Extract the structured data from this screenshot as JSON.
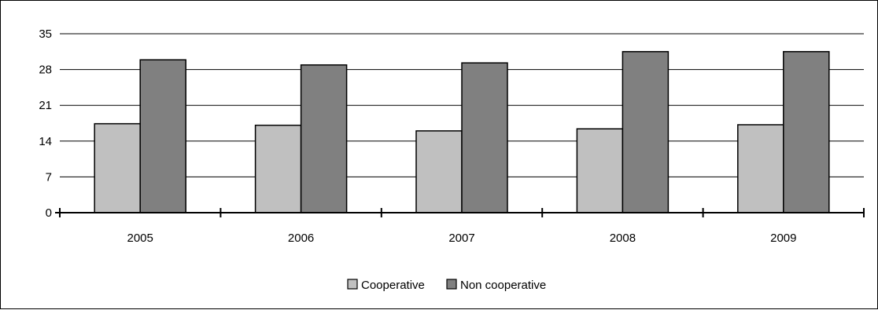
{
  "chart_data": {
    "type": "bar",
    "categories": [
      "2005",
      "2006",
      "2007",
      "2008",
      "2009"
    ],
    "series": [
      {
        "name": "Cooperative",
        "values": [
          17.4,
          17.1,
          16.0,
          16.4,
          17.2
        ],
        "color": "#c0c0c0"
      },
      {
        "name": "Non cooperative",
        "values": [
          29.9,
          28.9,
          29.3,
          31.5,
          31.5
        ],
        "color": "#808080"
      }
    ],
    "ylim": [
      0,
      35
    ],
    "yticks": [
      0,
      7,
      14,
      21,
      28,
      35
    ],
    "grid": true,
    "legend": "bottom",
    "title": "",
    "xlabel": "",
    "ylabel": ""
  }
}
